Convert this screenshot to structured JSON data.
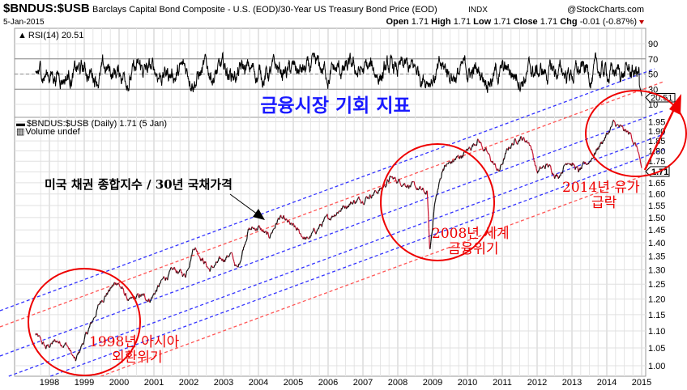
{
  "header": {
    "symbol": "$BNDUS:$USB",
    "description": "Barclays Capital Bond Composite - U.S. (EOD)/30-Year US Treasury Bond Price (EOD)",
    "exchange": "INDX",
    "brand": "@StockCharts.com",
    "date": "5-Jan-2015",
    "open_label": "Open",
    "open": "1.71",
    "high_label": "High",
    "high": "1.71",
    "low_label": "Low",
    "low": "1.71",
    "close_label": "Close",
    "close": "1.71",
    "chg_label": "Chg",
    "chg": "-0.01 (-0.87%)",
    "down_color": "#c00000"
  },
  "rsi_panel": {
    "label": "RSI(14) 20.51",
    "last_value": "20.51",
    "ticks": [
      "90",
      "70",
      "50",
      "30",
      "10"
    ]
  },
  "price_panel": {
    "label": "$BNDUS:$USB (Daily) 1.71 (5 Jan)",
    "volume_label": "Volume undef",
    "last_value": "1.71",
    "ticks": [
      "1.95",
      "1.90",
      "1.85",
      "1.80",
      "1.75",
      "1.65",
      "1.60",
      "1.55",
      "1.50",
      "1.45",
      "1.40",
      "1.35",
      "1.30",
      "1.25",
      "1.20",
      "1.15",
      "1.10",
      "1.05",
      "1.00"
    ]
  },
  "x_axis": {
    "years": [
      "1998",
      "1999",
      "2000",
      "2001",
      "2002",
      "2003",
      "2004",
      "2005",
      "2006",
      "2007",
      "2008",
      "2009",
      "2010",
      "2011",
      "2012",
      "2013",
      "2014",
      "2015"
    ]
  },
  "annotations": {
    "title": "금융시장 기회 지표",
    "series_note": "미국 채권 종합지수 / 30년 국채가격",
    "crisis_1998_line1": "1998년 아시아",
    "crisis_1998_line2": "외환위기",
    "crisis_2008_line1": "2008년 세계",
    "crisis_2008_line2": "금융위기",
    "crisis_2014_line1": "2014년 유가",
    "crisis_2014_line2": "급락"
  },
  "chart_data": {
    "type": "line",
    "title": "$BNDUS:$USB Barclays Capital Bond Composite - U.S. / 30-Year US Treasury Bond Price",
    "xlabel": "",
    "ylabel": "",
    "scale": "log",
    "ylim": [
      1.0,
      1.95
    ],
    "xlim": [
      1997.6,
      2015.02
    ],
    "grid": true,
    "series": [
      {
        "name": "$BNDUS:$USB",
        "x": [
          1997.6,
          1997.9,
          1998.2,
          1998.5,
          1998.75,
          1998.9,
          1999.2,
          1999.5,
          1999.95,
          2000.3,
          2000.6,
          2000.9,
          2001.3,
          2001.6,
          2001.9,
          2002.15,
          2002.6,
          2002.9,
          2003.2,
          2003.4,
          2003.7,
          2004.0,
          2004.3,
          2004.6,
          2005.0,
          2005.4,
          2005.8,
          2006.2,
          2006.6,
          2007.0,
          2007.5,
          2007.8,
          2008.2,
          2008.6,
          2008.85,
          2008.92,
          2009.05,
          2009.3,
          2009.6,
          2010.0,
          2010.3,
          2010.7,
          2010.9,
          2011.2,
          2011.5,
          2011.8,
          2012.0,
          2012.3,
          2012.6,
          2012.9,
          2013.2,
          2013.5,
          2013.8,
          2014.0,
          2014.2,
          2014.5,
          2014.7,
          2014.9,
          2015.01
        ],
        "values": [
          1.09,
          1.05,
          1.07,
          1.06,
          1.01,
          1.05,
          1.12,
          1.2,
          1.26,
          1.19,
          1.21,
          1.2,
          1.27,
          1.3,
          1.28,
          1.39,
          1.3,
          1.33,
          1.36,
          1.3,
          1.45,
          1.46,
          1.42,
          1.5,
          1.46,
          1.41,
          1.47,
          1.52,
          1.56,
          1.58,
          1.62,
          1.67,
          1.65,
          1.62,
          1.6,
          1.36,
          1.55,
          1.72,
          1.75,
          1.8,
          1.86,
          1.75,
          1.7,
          1.82,
          1.87,
          1.84,
          1.7,
          1.73,
          1.68,
          1.76,
          1.7,
          1.75,
          1.83,
          1.88,
          1.94,
          1.9,
          1.88,
          1.8,
          1.71
        ]
      }
    ],
    "indicator": {
      "name": "RSI(14)",
      "last": 20.51,
      "range": [
        0,
        100
      ],
      "levels": [
        30,
        50,
        70
      ]
    }
  }
}
